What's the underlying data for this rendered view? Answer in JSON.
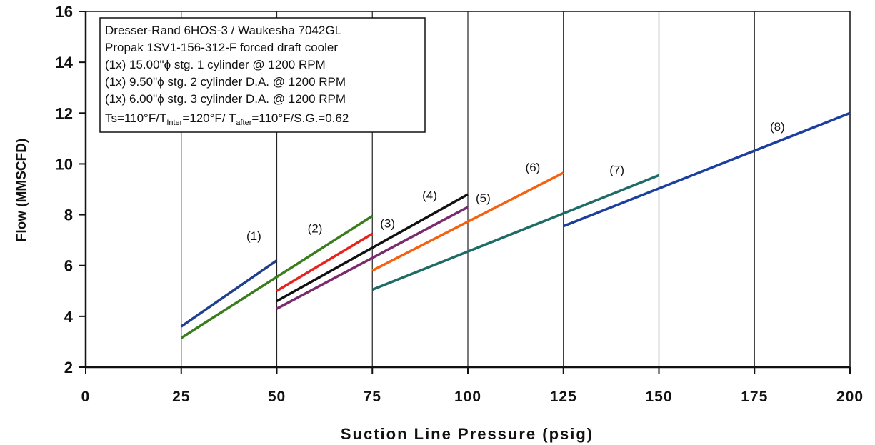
{
  "chart_data": {
    "type": "line",
    "xlabel": "Suction Line Pressure (psig)",
    "ylabel": "Flow (MMSCFD)",
    "xlim": [
      0,
      200
    ],
    "ylim": [
      2,
      16
    ],
    "x_ticks": [
      "0",
      "25",
      "50",
      "75",
      "100",
      "125",
      "150",
      "175",
      "200"
    ],
    "y_ticks": [
      "2",
      "4",
      "6",
      "8",
      "10",
      "12",
      "14",
      "16"
    ],
    "grid": "vertical",
    "legend": "none",
    "annotation": {
      "lines": [
        "Dresser-Rand 6HOS-3 / Waukesha 7042GL",
        "Propak 1SV1-156-312-F forced draft cooler",
        "(1x) 15.00\"ϕ stg. 1 cylinder @ 1200 RPM",
        "(1x) 9.50\"ϕ stg. 2 cylinder D.A. @ 1200 RPM",
        "(1x) 6.00\"ϕ stg. 3 cylinder D.A. @ 1200 RPM",
        "Ts=110°F/T_Inter=120°F/ T_after=110°F/S.G.=0.62"
      ]
    },
    "series": [
      {
        "name": "(1)",
        "color": "#1f3f8f",
        "x": [
          25,
          50
        ],
        "y": [
          3.6,
          6.2
        ]
      },
      {
        "name": "(2)",
        "color": "#3a7d1e",
        "x": [
          25,
          75
        ],
        "y": [
          3.15,
          7.95
        ]
      },
      {
        "name": "(3)",
        "color": "#e8221c",
        "x": [
          50,
          75
        ],
        "y": [
          5.0,
          7.25
        ]
      },
      {
        "name": "(4)",
        "color": "#111111",
        "x": [
          50,
          100
        ],
        "y": [
          4.6,
          8.8
        ]
      },
      {
        "name": "(5)",
        "color": "#7a2b6e",
        "x": [
          50,
          100
        ],
        "y": [
          4.3,
          8.3
        ]
      },
      {
        "name": "(6)",
        "color": "#f4620f",
        "x": [
          75,
          125
        ],
        "y": [
          5.8,
          9.65
        ]
      },
      {
        "name": "(7)",
        "color": "#1f6b66",
        "x": [
          75,
          150
        ],
        "y": [
          5.05,
          9.55
        ]
      },
      {
        "name": "(8)",
        "color": "#1c3e9e",
        "x": [
          125,
          200
        ],
        "y": [
          7.55,
          12.0
        ]
      }
    ]
  }
}
